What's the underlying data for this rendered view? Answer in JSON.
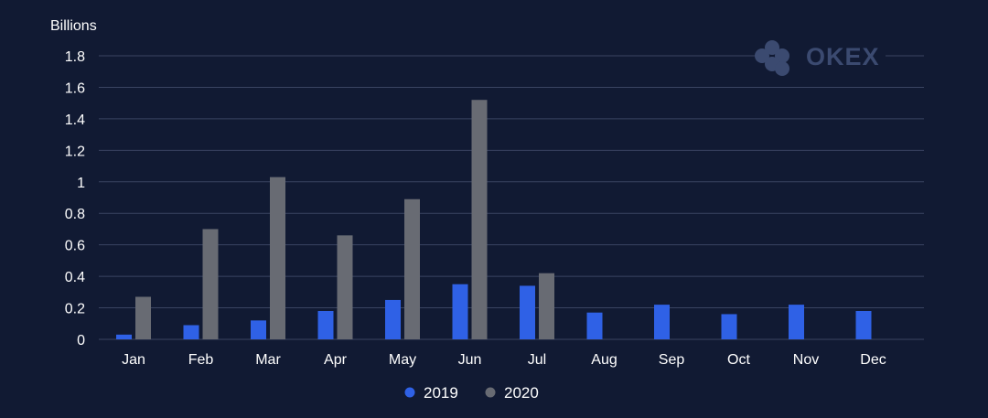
{
  "brand": {
    "logo_text": "OKEX"
  },
  "colors": {
    "background": "#111a33",
    "gridline": "#3a4462",
    "series_2019": "#2f61e6",
    "series_2020": "#686b73",
    "logo": "#3b4a70"
  },
  "chart_data": {
    "type": "bar",
    "ylabel": "Billions",
    "xlabel": "",
    "ylim": [
      0,
      1.8
    ],
    "yticks": [
      0,
      0.2,
      0.4,
      0.6,
      0.8,
      1,
      1.2,
      1.4,
      1.6,
      1.8
    ],
    "ytick_labels": [
      "0",
      "0.2",
      "0.4",
      "0.6",
      "0.8",
      "1",
      "1.2",
      "1.4",
      "1.6",
      "1.8"
    ],
    "grid": true,
    "legend_position": "bottom",
    "categories": [
      "Jan",
      "Feb",
      "Mar",
      "Apr",
      "May",
      "Jun",
      "Jul",
      "Aug",
      "Sep",
      "Oct",
      "Nov",
      "Dec"
    ],
    "series": [
      {
        "name": "2019",
        "color": "#2f61e6",
        "values": [
          0.03,
          0.09,
          0.12,
          0.18,
          0.25,
          0.35,
          0.34,
          0.17,
          0.22,
          0.16,
          0.22,
          0.18
        ]
      },
      {
        "name": "2020",
        "color": "#686b73",
        "values": [
          0.27,
          0.7,
          1.03,
          0.66,
          0.89,
          1.52,
          0.42,
          null,
          null,
          null,
          null,
          null
        ]
      }
    ]
  }
}
